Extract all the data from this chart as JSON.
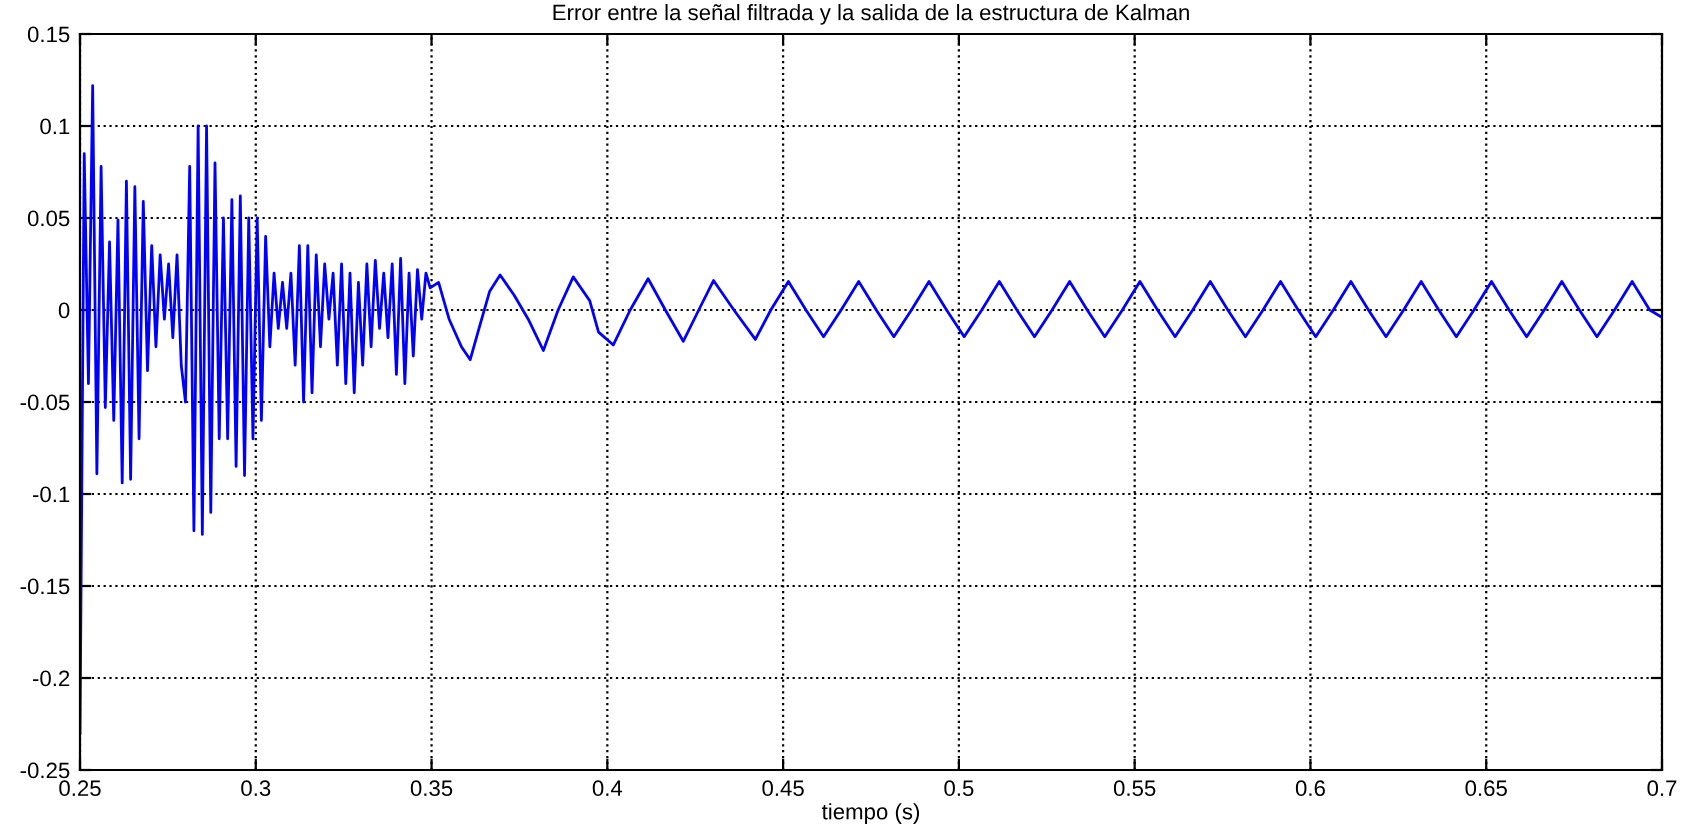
{
  "chart_data": {
    "type": "line",
    "title": "Error entre la señal filtrada y la salida de la estructura de Kalman",
    "xlabel": "tiempo (s)",
    "x": [
      0.25,
      0.2512,
      0.2524,
      0.2536,
      0.2548,
      0.256,
      0.2572,
      0.2584,
      0.2596,
      0.2608,
      0.262,
      0.2632,
      0.2644,
      0.2656,
      0.2668,
      0.268,
      0.2692,
      0.2704,
      0.2716,
      0.2728,
      0.274,
      0.2752,
      0.2764,
      0.2776,
      0.2788,
      0.28,
      0.2812,
      0.2824,
      0.2836,
      0.2848,
      0.286,
      0.2872,
      0.2884,
      0.2896,
      0.2908,
      0.292,
      0.2932,
      0.2944,
      0.2956,
      0.2968,
      0.298,
      0.2992,
      0.3004,
      0.3016,
      0.3028,
      0.304,
      0.3052,
      0.3064,
      0.3076,
      0.3088,
      0.31,
      0.3112,
      0.3124,
      0.3136,
      0.3148,
      0.316,
      0.3172,
      0.3184,
      0.3196,
      0.3208,
      0.322,
      0.3232,
      0.3244,
      0.3256,
      0.3268,
      0.328,
      0.3292,
      0.3304,
      0.3316,
      0.3328,
      0.334,
      0.3352,
      0.3364,
      0.3376,
      0.3388,
      0.34,
      0.3412,
      0.3424,
      0.3436,
      0.3448,
      0.346,
      0.3472,
      0.3484,
      0.3496,
      0.352,
      0.3535,
      0.355,
      0.3585,
      0.361,
      0.3635,
      0.3665,
      0.3695,
      0.3735,
      0.3775,
      0.3818,
      0.386,
      0.3903,
      0.395,
      0.3975,
      0.4017,
      0.4065,
      0.4116,
      0.4165,
      0.4216,
      0.426,
      0.4302,
      0.436,
      0.4421,
      0.4465,
      0.4515,
      0.4565,
      0.4615,
      0.4665,
      0.4715,
      0.4765,
      0.4815,
      0.4865,
      0.4915,
      0.4965,
      0.5015,
      0.5065,
      0.5115,
      0.5165,
      0.5215,
      0.5265,
      0.5315,
      0.5365,
      0.5415,
      0.5465,
      0.5515,
      0.5565,
      0.5615,
      0.5665,
      0.5715,
      0.5765,
      0.5815,
      0.5865,
      0.5915,
      0.5965,
      0.6015,
      0.6065,
      0.6115,
      0.6165,
      0.6215,
      0.6265,
      0.6315,
      0.6365,
      0.6415,
      0.6465,
      0.6515,
      0.6565,
      0.6615,
      0.6665,
      0.6715,
      0.6765,
      0.6815,
      0.6865,
      0.6915,
      0.6965,
      0.7
    ],
    "series": [
      {
        "color": "#0000ff",
        "values": [
          -0.23,
          0.085,
          -0.04,
          0.122,
          -0.089,
          0.078,
          -0.053,
          0.037,
          -0.06,
          0.049,
          -0.094,
          0.07,
          -0.092,
          0.067,
          -0.07,
          0.059,
          -0.033,
          0.035,
          -0.02,
          0.03,
          -0.005,
          0.025,
          -0.015,
          0.03,
          -0.03,
          -0.05,
          0.078,
          -0.12,
          0.1,
          -0.122,
          0.1,
          -0.11,
          0.08,
          -0.07,
          0.05,
          -0.07,
          0.06,
          -0.085,
          0.062,
          -0.09,
          0.05,
          -0.07,
          0.05,
          -0.06,
          0.04,
          -0.02,
          0.02,
          -0.01,
          0.015,
          -0.01,
          0.02,
          -0.03,
          0.035,
          -0.05,
          0.035,
          -0.045,
          0.03,
          -0.02,
          0.025,
          -0.005,
          0.02,
          -0.03,
          0.025,
          -0.04,
          0.02,
          -0.045,
          0.015,
          -0.03,
          0.025,
          -0.02,
          0.027,
          -0.01,
          0.02,
          -0.015,
          0.025,
          -0.035,
          0.028,
          -0.04,
          0.02,
          -0.025,
          0.022,
          -0.005,
          0.02,
          0.012,
          0.015,
          0.005,
          -0.005,
          -0.02,
          -0.027,
          -0.01,
          0.01,
          0.019,
          0.008,
          -0.005,
          -0.022,
          0.0,
          0.018,
          0.005,
          -0.012,
          -0.019,
          0.0,
          0.017,
          0.0,
          -0.017,
          0.0,
          0.016,
          0.0,
          -0.016,
          0.0,
          0.0155,
          0.0,
          -0.0145,
          0.0,
          0.0155,
          0.0,
          -0.0145,
          0.0,
          0.0155,
          0.0,
          -0.0145,
          0.0,
          0.0155,
          0.0,
          -0.0145,
          0.0,
          0.0155,
          0.0,
          -0.0145,
          0.0,
          0.0155,
          0.0,
          -0.0145,
          0.0,
          0.0155,
          0.0,
          -0.0145,
          0.0,
          0.0155,
          0.0,
          -0.0145,
          0.0,
          0.0155,
          0.0,
          -0.0145,
          0.0,
          0.0155,
          0.0,
          -0.0145,
          0.0,
          0.0155,
          0.0,
          -0.0145,
          0.0,
          0.0155,
          0.0,
          -0.0145,
          0.0,
          0.0155,
          0.0,
          -0.004
        ]
      }
    ],
    "xlim": [
      0.25,
      0.7
    ],
    "xticks": [
      0.25,
      0.3,
      0.35,
      0.4,
      0.45,
      0.5,
      0.55,
      0.6,
      0.65,
      0.7
    ],
    "ylim": [
      -0.25,
      0.15
    ],
    "yticks": [
      -0.25,
      -0.2,
      -0.15,
      -0.1,
      -0.05,
      0,
      0.05,
      0.1,
      0.15
    ],
    "grid": true,
    "line_style": "solid"
  }
}
